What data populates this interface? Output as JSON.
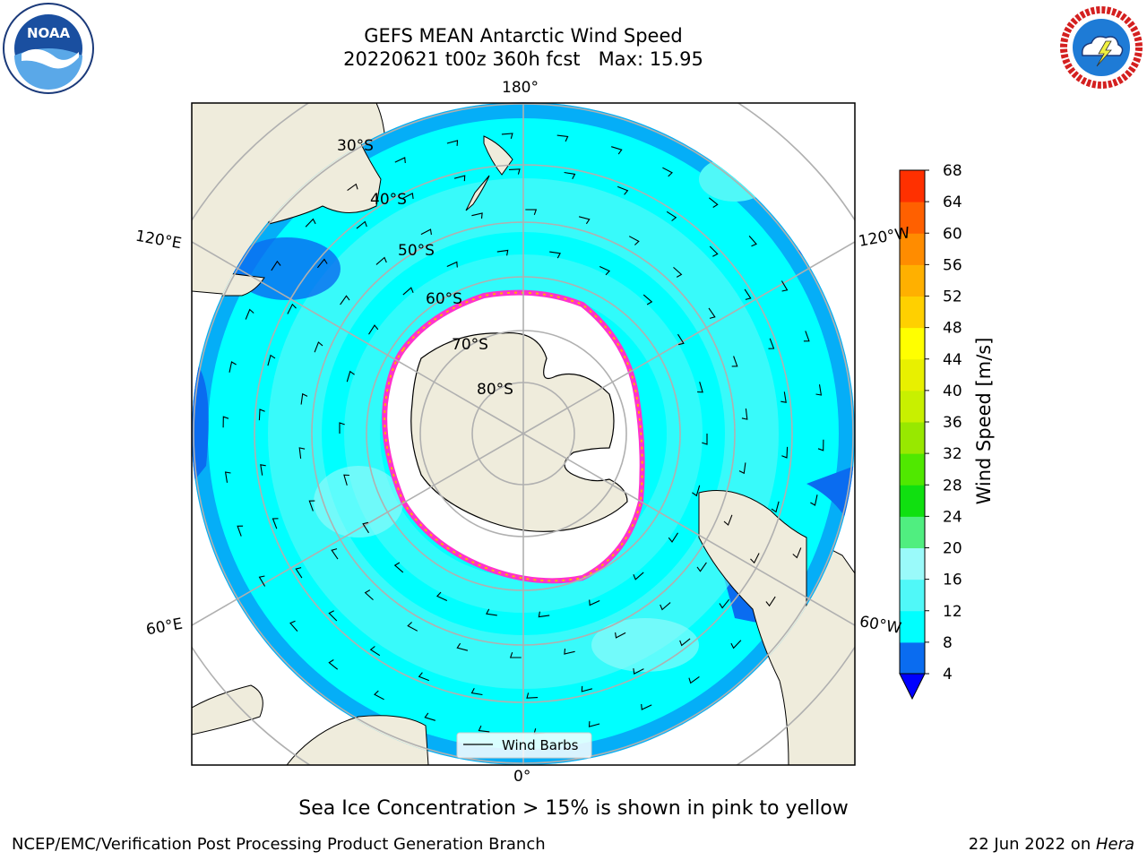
{
  "title": {
    "line1": "GEFS MEAN Antarctic Wind Speed",
    "line2": "20220621 t00z 360h fcst   Max: 15.95"
  },
  "map": {
    "projection": "south-polar-stereographic",
    "longitude_labels": {
      "top": "180°",
      "bottom": "0°",
      "upper_left": "120°E",
      "lower_left": "60°E",
      "upper_right": "120°W",
      "lower_right": "60°W"
    },
    "latitude_labels": [
      "30°S",
      "40°S",
      "50°S",
      "60°S",
      "70°S",
      "80°S"
    ],
    "gridlines": true,
    "legend": {
      "label": "Wind Barbs",
      "placement": "bottom-center"
    }
  },
  "colorbar": {
    "label": "Wind Speed [m/s]",
    "ticks": [
      "4",
      "8",
      "12",
      "16",
      "20",
      "24",
      "28",
      "32",
      "36",
      "40",
      "44",
      "48",
      "52",
      "56",
      "60",
      "64",
      "68"
    ],
    "colors": [
      "#0a6cf0",
      "#00ffff",
      "#50f8f8",
      "#9afafa",
      "#50ee80",
      "#10e010",
      "#50e800",
      "#98e800",
      "#c8f000",
      "#e8f000",
      "#ffff00",
      "#ffd000",
      "#ffb000",
      "#ff8c00",
      "#ff6000",
      "#ff3000",
      "#ff0000"
    ],
    "under_color": "#0000ff",
    "extend": "min"
  },
  "caption": "Sea Ice Concentration > 15% is shown in pink to yellow",
  "footer": {
    "left": "NCEP/EMC/Verification Post Processing Product Generation Branch",
    "right_prefix": "22 Jun 2022 on ",
    "right_platform": "Hera"
  },
  "chart_data": {
    "type": "heatmap",
    "title": "GEFS MEAN Antarctic Wind Speed",
    "subtitle": "20220621 t00z 360h fcst   Max: 15.95",
    "variable": "Wind Speed [m/s]",
    "max_value": 15.95,
    "colorbar_range": [
      4,
      68
    ]
  },
  "logos": {
    "left": "NOAA",
    "right": "NATIONAL WEATHER SERVICE"
  }
}
